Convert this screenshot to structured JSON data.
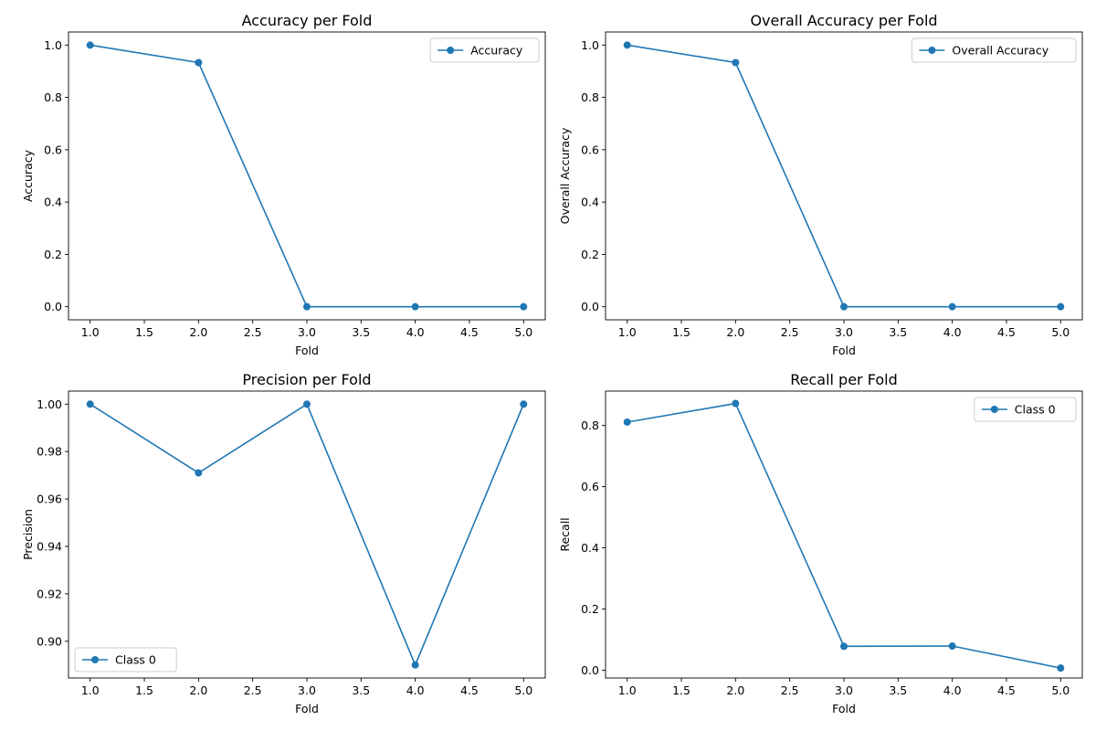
{
  "colors": {
    "series": "#1f77b4",
    "axes": "#000000",
    "legend_border": "#cccccc"
  },
  "chart_data": [
    {
      "type": "line",
      "title": "Accuracy per Fold",
      "xlabel": "Fold",
      "ylabel": "Accuracy",
      "xlim": [
        0.8,
        5.2
      ],
      "ylim": [
        -0.05,
        1.05
      ],
      "xticks": [
        1.0,
        1.5,
        2.0,
        2.5,
        3.0,
        3.5,
        4.0,
        4.5,
        5.0
      ],
      "xtick_labels": [
        "1.0",
        "1.5",
        "2.0",
        "2.5",
        "3.0",
        "3.5",
        "4.0",
        "4.5",
        "5.0"
      ],
      "yticks": [
        0.0,
        0.2,
        0.4,
        0.6,
        0.8,
        1.0
      ],
      "ytick_labels": [
        "0.0",
        "0.2",
        "0.4",
        "0.6",
        "0.8",
        "1.0"
      ],
      "legend_position": "upper-right",
      "grid": false,
      "series": [
        {
          "name": "Accuracy",
          "x": [
            1,
            2,
            3,
            4,
            5
          ],
          "y": [
            1.0,
            0.933,
            0.0,
            0.0,
            0.0
          ]
        }
      ]
    },
    {
      "type": "line",
      "title": "Overall Accuracy per Fold",
      "xlabel": "Fold",
      "ylabel": "Overall Accuracy",
      "xlim": [
        0.8,
        5.2
      ],
      "ylim": [
        -0.05,
        1.05
      ],
      "xticks": [
        1.0,
        1.5,
        2.0,
        2.5,
        3.0,
        3.5,
        4.0,
        4.5,
        5.0
      ],
      "xtick_labels": [
        "1.0",
        "1.5",
        "2.0",
        "2.5",
        "3.0",
        "3.5",
        "4.0",
        "4.5",
        "5.0"
      ],
      "yticks": [
        0.0,
        0.2,
        0.4,
        0.6,
        0.8,
        1.0
      ],
      "ytick_labels": [
        "0.0",
        "0.2",
        "0.4",
        "0.6",
        "0.8",
        "1.0"
      ],
      "legend_position": "upper-right",
      "grid": false,
      "series": [
        {
          "name": "Overall Accuracy",
          "x": [
            1,
            2,
            3,
            4,
            5
          ],
          "y": [
            1.0,
            0.933,
            0.0,
            0.0,
            0.0
          ]
        }
      ]
    },
    {
      "type": "line",
      "title": "Precision per Fold",
      "xlabel": "Fold",
      "ylabel": "Precision",
      "xlim": [
        0.8,
        5.2
      ],
      "ylim": [
        0.8845,
        1.0055
      ],
      "xticks": [
        1.0,
        1.5,
        2.0,
        2.5,
        3.0,
        3.5,
        4.0,
        4.5,
        5.0
      ],
      "xtick_labels": [
        "1.0",
        "1.5",
        "2.0",
        "2.5",
        "3.0",
        "3.5",
        "4.0",
        "4.5",
        "5.0"
      ],
      "yticks": [
        0.9,
        0.92,
        0.94,
        0.96,
        0.98,
        1.0
      ],
      "ytick_labels": [
        "0.90",
        "0.92",
        "0.94",
        "0.96",
        "0.98",
        "1.00"
      ],
      "legend_position": "lower-left",
      "grid": false,
      "series": [
        {
          "name": "Class 0",
          "x": [
            1,
            2,
            3,
            4,
            5
          ],
          "y": [
            1.0,
            0.971,
            1.0,
            0.89,
            1.0
          ]
        }
      ]
    },
    {
      "type": "line",
      "title": "Recall per Fold",
      "xlabel": "Fold",
      "ylabel": "Recall",
      "xlim": [
        0.8,
        5.2
      ],
      "ylim": [
        -0.0255,
        0.9125
      ],
      "xticks": [
        1.0,
        1.5,
        2.0,
        2.5,
        3.0,
        3.5,
        4.0,
        4.5,
        5.0
      ],
      "xtick_labels": [
        "1.0",
        "1.5",
        "2.0",
        "2.5",
        "3.0",
        "3.5",
        "4.0",
        "4.5",
        "5.0"
      ],
      "yticks": [
        0.0,
        0.2,
        0.4,
        0.6,
        0.8
      ],
      "ytick_labels": [
        "0.0",
        "0.2",
        "0.4",
        "0.6",
        "0.8"
      ],
      "legend_position": "upper-right",
      "grid": false,
      "series": [
        {
          "name": "Class 0",
          "x": [
            1,
            2,
            3,
            4,
            5
          ],
          "y": [
            0.811,
            0.872,
            0.078,
            0.079,
            0.007
          ]
        }
      ]
    }
  ]
}
